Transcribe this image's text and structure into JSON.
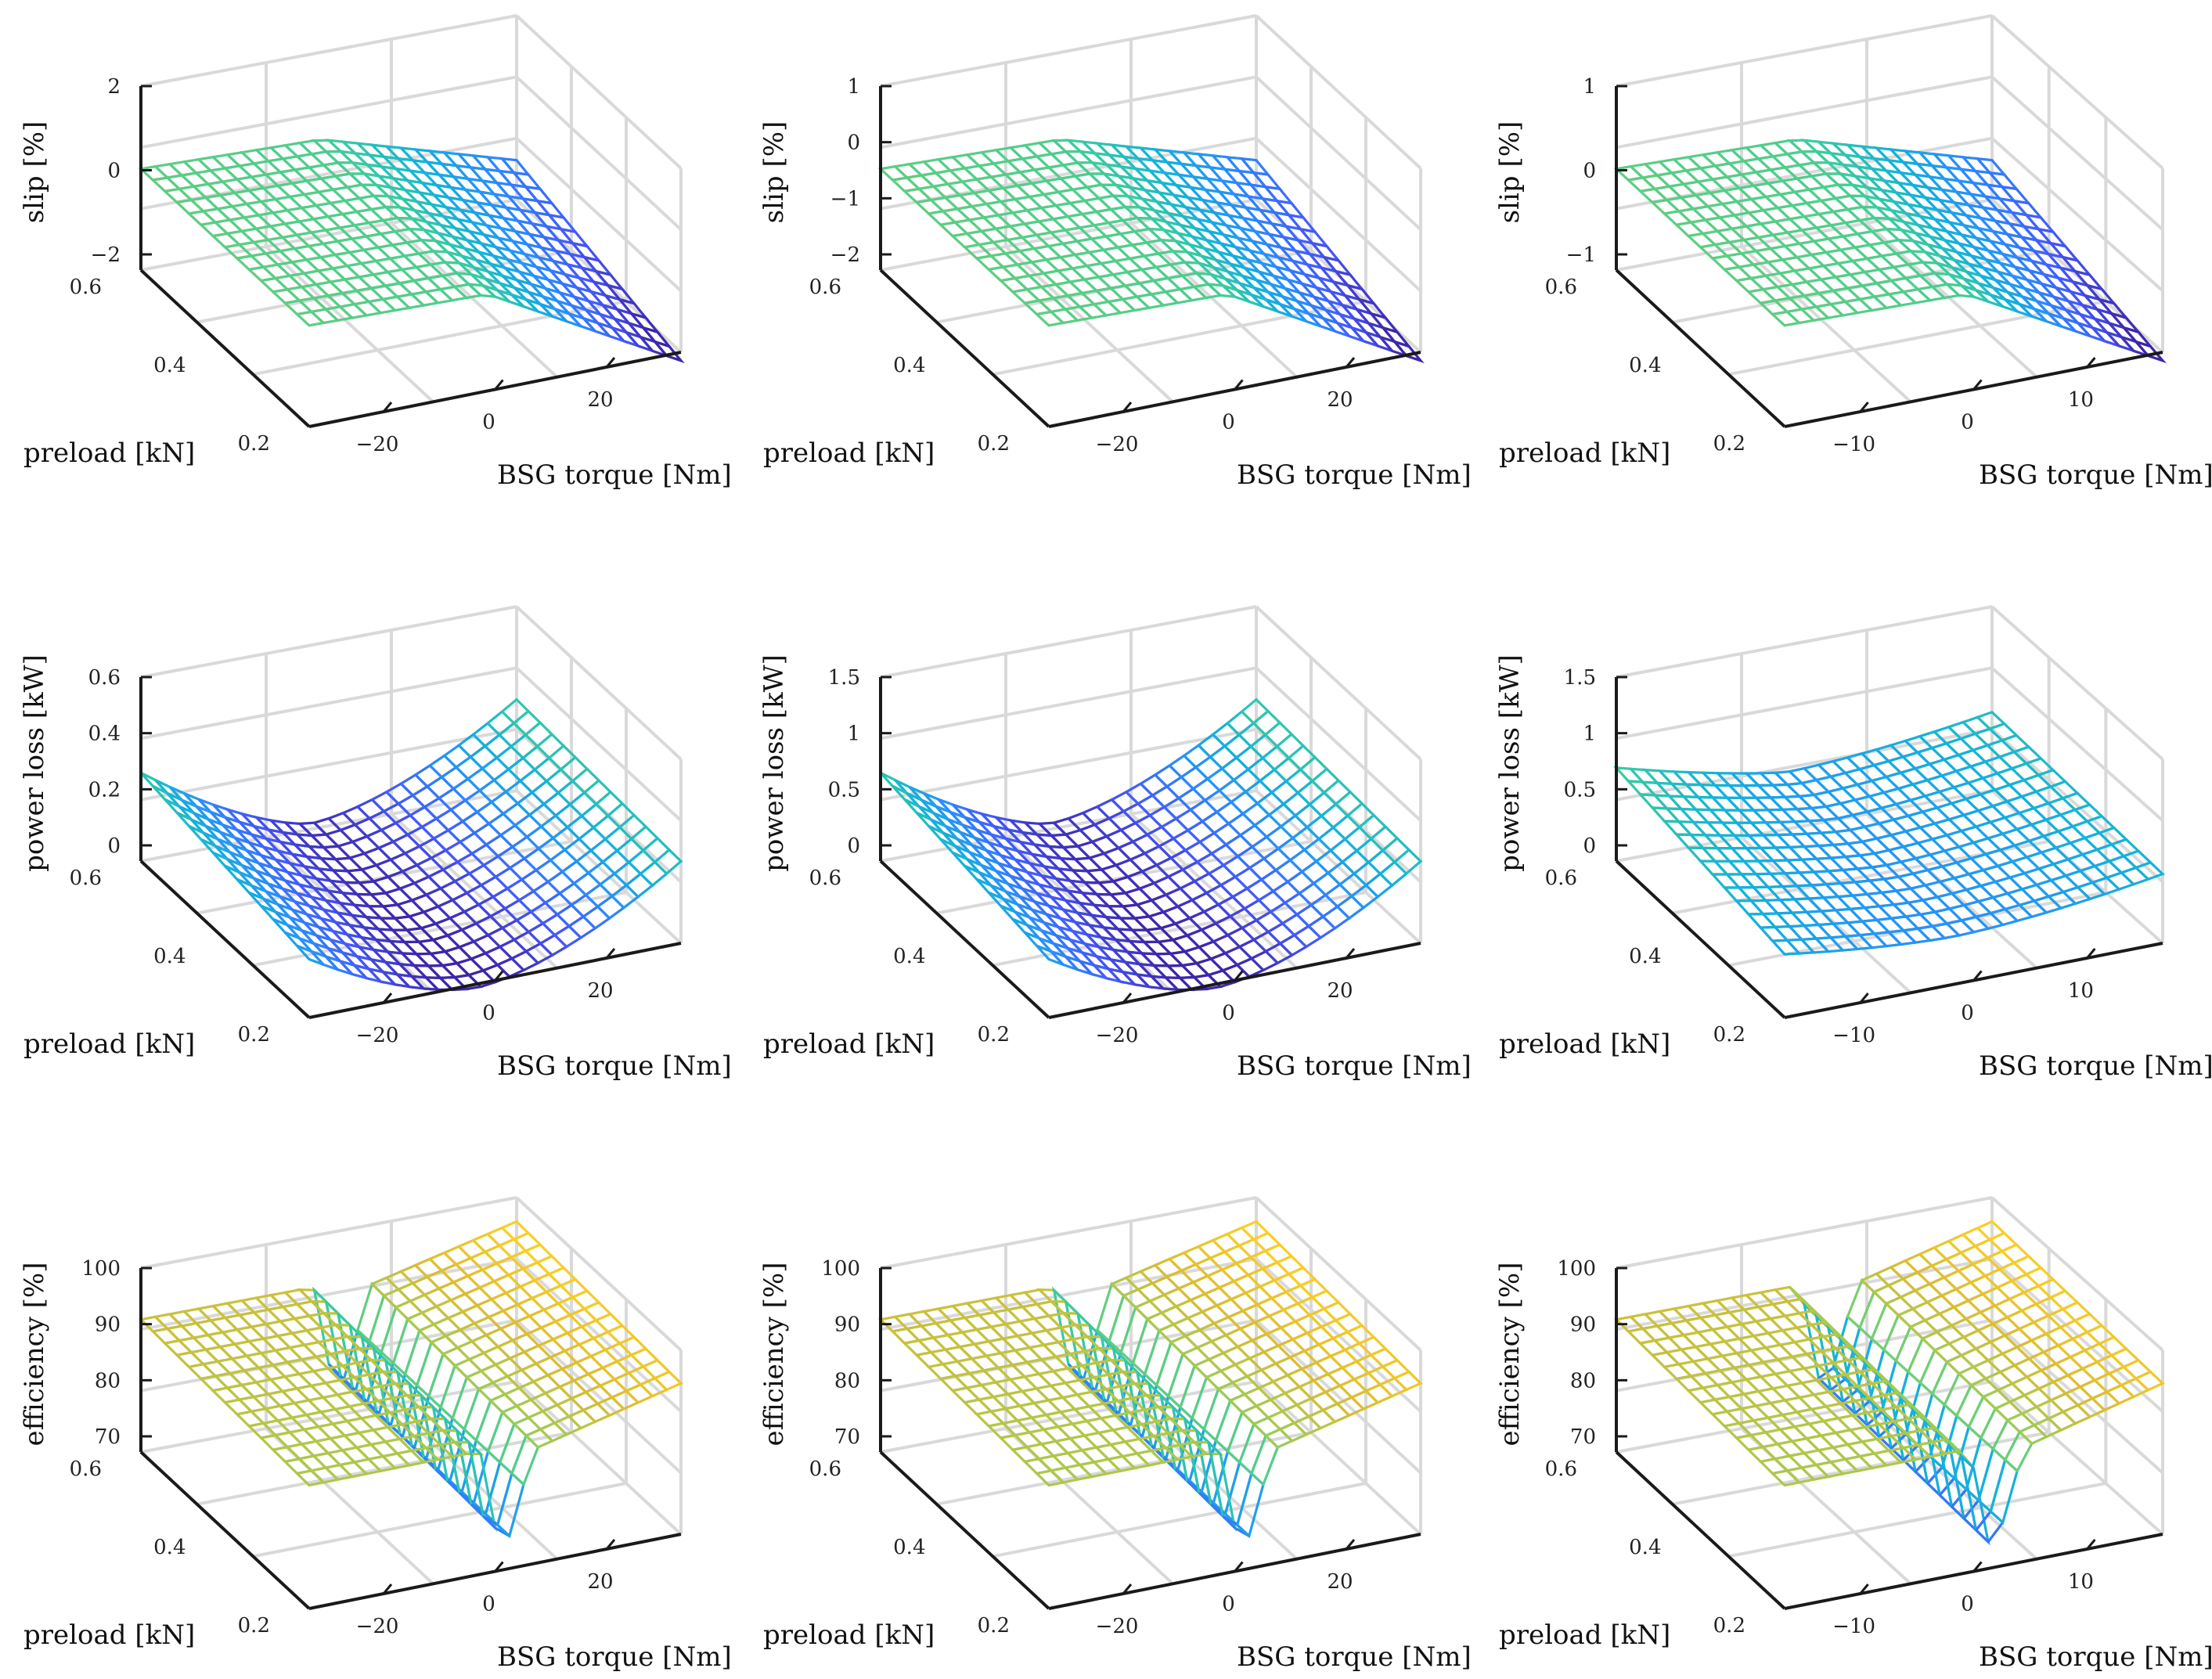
{
  "chart_data": [
    {
      "type": "surface",
      "row": "slip",
      "col": 1,
      "xlabel": "BSG torque [Nm]",
      "ylabel": "preload [kN]",
      "zlabel": "slip [%]",
      "x_ticks": [
        "−20",
        "0",
        "20"
      ],
      "y_ticks": [
        "0.2",
        "0.4",
        "0.6"
      ],
      "z_ticks": [
        "−2",
        "0",
        "2"
      ]
    },
    {
      "type": "surface",
      "row": "slip",
      "col": 2,
      "xlabel": "BSG torque [Nm]",
      "ylabel": "preload [kN]",
      "zlabel": "slip [%]",
      "x_ticks": [
        "−20",
        "0",
        "20"
      ],
      "y_ticks": [
        "0.2",
        "0.4",
        "0.6"
      ],
      "z_ticks": [
        "−2",
        "−1",
        "0",
        "1"
      ]
    },
    {
      "type": "surface",
      "row": "slip",
      "col": 3,
      "xlabel": "BSG torque [Nm]",
      "ylabel": "preload [kN]",
      "zlabel": "slip [%]",
      "x_ticks": [
        "−10",
        "0",
        "10"
      ],
      "y_ticks": [
        "0.2",
        "0.4",
        "0.6"
      ],
      "z_ticks": [
        "−1",
        "0",
        "1"
      ]
    },
    {
      "type": "surface",
      "row": "power",
      "col": 1,
      "xlabel": "BSG torque [Nm]",
      "ylabel": "preload [kN]",
      "zlabel": "power loss [kW]",
      "x_ticks": [
        "−20",
        "0",
        "20"
      ],
      "y_ticks": [
        "0.2",
        "0.4",
        "0.6"
      ],
      "z_ticks": [
        "0",
        "0.2",
        "0.4",
        "0.6"
      ]
    },
    {
      "type": "surface",
      "row": "power",
      "col": 2,
      "xlabel": "BSG torque [Nm]",
      "ylabel": "preload [kN]",
      "zlabel": "power loss [kW]",
      "x_ticks": [
        "−20",
        "0",
        "20"
      ],
      "y_ticks": [
        "0.2",
        "0.4",
        "0.6"
      ],
      "z_ticks": [
        "0",
        "0.5",
        "1",
        "1.5"
      ]
    },
    {
      "type": "surface",
      "row": "power",
      "col": 3,
      "xlabel": "BSG torque [Nm]",
      "ylabel": "preload [kN]",
      "zlabel": "power loss [kW]",
      "x_ticks": [
        "−10",
        "0",
        "10"
      ],
      "y_ticks": [
        "0.2",
        "0.4",
        "0.6"
      ],
      "z_ticks": [
        "0",
        "0.5",
        "1",
        "1.5"
      ]
    },
    {
      "type": "surface",
      "row": "efficiency",
      "col": 1,
      "xlabel": "BSG torque [Nm]",
      "ylabel": "preload [kN]",
      "zlabel": "efficiency [%]",
      "x_ticks": [
        "−20",
        "0",
        "20"
      ],
      "y_ticks": [
        "0.2",
        "0.4",
        "0.6"
      ],
      "z_ticks": [
        "70",
        "80",
        "90",
        "100"
      ]
    },
    {
      "type": "surface",
      "row": "efficiency",
      "col": 2,
      "xlabel": "BSG torque [Nm]",
      "ylabel": "preload [kN]",
      "zlabel": "efficiency [%]",
      "x_ticks": [
        "−20",
        "0",
        "20"
      ],
      "y_ticks": [
        "0.2",
        "0.4",
        "0.6"
      ],
      "z_ticks": [
        "70",
        "80",
        "90",
        "100"
      ]
    },
    {
      "type": "surface",
      "row": "efficiency",
      "col": 3,
      "xlabel": "BSG torque [Nm]",
      "ylabel": "preload [kN]",
      "zlabel": "efficiency [%]",
      "x_ticks": [
        "−10",
        "0",
        "10"
      ],
      "y_ticks": [
        "0.2",
        "0.4",
        "0.6"
      ],
      "z_ticks": [
        "70",
        "80",
        "90",
        "100"
      ]
    }
  ]
}
